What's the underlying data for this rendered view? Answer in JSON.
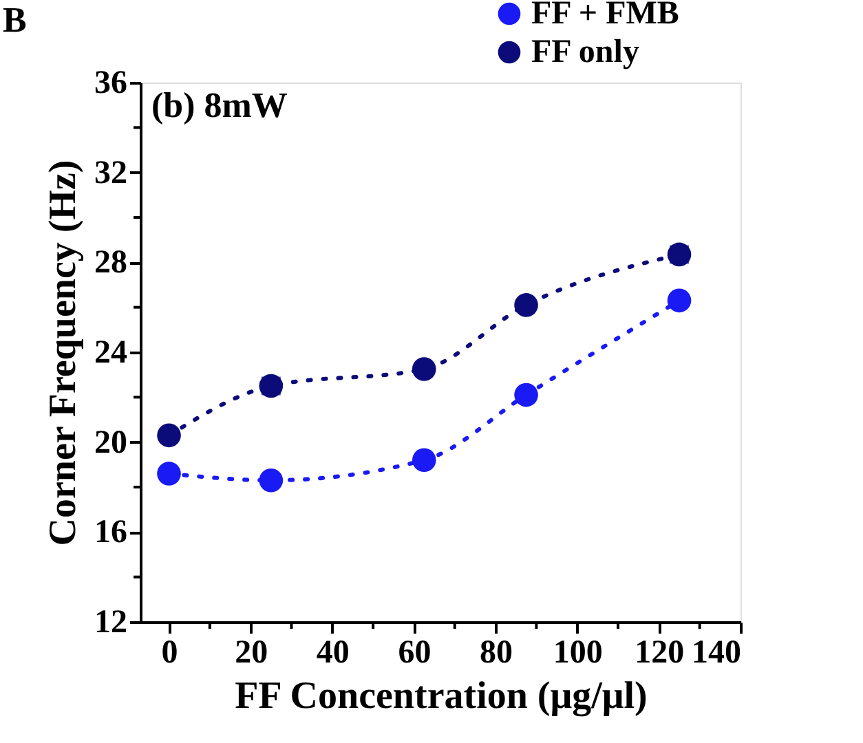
{
  "chart_data": {
    "type": "line",
    "title": "(b) 8mW",
    "xlabel": "FF Concentration (μg/μl)",
    "ylabel": "Corner Frequency (Hz)",
    "annotations": [
      "B"
    ],
    "x": [
      0,
      25,
      62.5,
      87.5,
      125
    ],
    "series": [
      {
        "name": "FF + FMB",
        "color": "#1a1af5",
        "values": [
          18.6,
          18.3,
          19.2,
          22.1,
          26.3
        ]
      },
      {
        "name": "FF only",
        "color": "#0b0b7a",
        "values": [
          20.3,
          22.5,
          23.25,
          26.1,
          28.35
        ],
        "errors": [
          null,
          0.35,
          null,
          null,
          0.35
        ]
      }
    ],
    "xlim": [
      -7,
      140
    ],
    "xticks": [
      0,
      {
        "value": 10,
        "label": null
      },
      20,
      {
        "value": 30,
        "label": null
      },
      40,
      {
        "value": 50,
        "label": null
      },
      60,
      {
        "value": 70,
        "label": null
      },
      80,
      {
        "value": 90,
        "label": null
      },
      100,
      {
        "value": 110,
        "label": null
      },
      120,
      {
        "value": 130,
        "label": null
      },
      140
    ],
    "ylim": [
      12,
      36
    ],
    "yticks": [
      12,
      {
        "value": 14,
        "label": null
      },
      16,
      {
        "value": 18,
        "label": null
      },
      20,
      {
        "value": 22,
        "label": null
      },
      24,
      {
        "value": 26,
        "label": null
      },
      28,
      {
        "value": 30,
        "label": null
      },
      32,
      {
        "value": 34,
        "label": null
      },
      36
    ],
    "marker": "circle",
    "line_style": "dotted",
    "legend": "top right",
    "grid": false
  }
}
